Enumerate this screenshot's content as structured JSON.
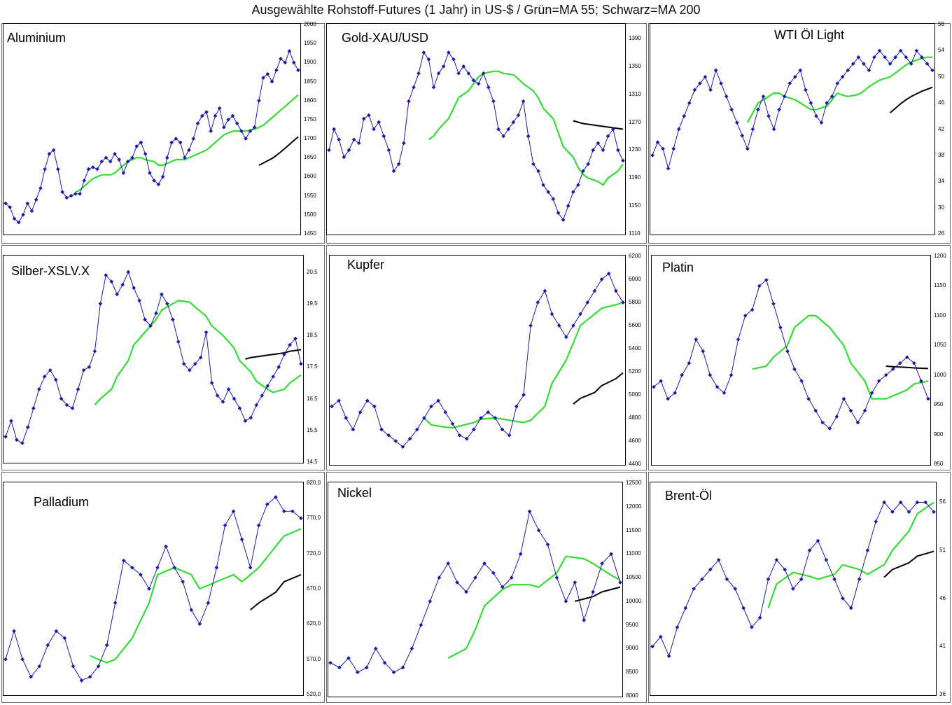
{
  "header": {
    "title": "Ausgewählte Rohstoff-Futures (1 Jahr) in US-$ / Grün=MA 55; Schwarz=MA 200"
  },
  "colors": {
    "price": "#1a1aa8",
    "ma55": "#33dd33",
    "ma200": "#000000",
    "frame": "#000000"
  },
  "chart_data": [
    {
      "type": "line",
      "title": "Aluminium",
      "ylim": [
        1450,
        2000
      ],
      "yticks": [
        "1450",
        "1500",
        "1550",
        "1600",
        "1650",
        "1700",
        "1750",
        "1800",
        "1850",
        "1900",
        "1950",
        "2000"
      ],
      "price": [
        1530,
        1520,
        1490,
        1480,
        1500,
        1530,
        1510,
        1540,
        1570,
        1620,
        1660,
        1670,
        1620,
        1560,
        1545,
        1550,
        1555,
        1555,
        1590,
        1620,
        1625,
        1620,
        1640,
        1650,
        1640,
        1660,
        1645,
        1610,
        1640,
        1650,
        1680,
        1690,
        1660,
        1610,
        1590,
        1580,
        1600,
        1650,
        1690,
        1700,
        1690,
        1650,
        1670,
        1700,
        1740,
        1760,
        1770,
        1720,
        1760,
        1780,
        1730,
        1750,
        1760,
        1740,
        1720,
        1700,
        1720,
        1730,
        1800,
        1860,
        1870,
        1850,
        1880,
        1910,
        1900,
        1930,
        1900,
        1880
      ],
      "ma55": [
        null,
        null,
        null,
        null,
        null,
        null,
        null,
        null,
        null,
        null,
        null,
        null,
        null,
        null,
        null,
        1560,
        1565,
        1575,
        1585,
        1595,
        1600,
        1605,
        1605,
        1605,
        1610,
        1620,
        1630,
        1640,
        1645,
        1650,
        1650,
        1645,
        1640,
        1630,
        1630,
        1635,
        1640,
        1645,
        1645,
        1645,
        1650,
        1655,
        1660,
        1665,
        1670,
        1680,
        1690,
        1700,
        1710,
        1715,
        1720,
        1720,
        1720,
        1720,
        1725,
        1730,
        1735,
        1745,
        1755,
        1765,
        1775,
        1785,
        1795,
        1805,
        1815
      ],
      "ma200": [
        null,
        null,
        null,
        null,
        null,
        null,
        null,
        null,
        null,
        null,
        null,
        null,
        null,
        null,
        null,
        null,
        null,
        null,
        null,
        null,
        null,
        null,
        null,
        null,
        null,
        null,
        null,
        null,
        null,
        null,
        null,
        null,
        null,
        null,
        null,
        null,
        null,
        null,
        null,
        null,
        null,
        null,
        null,
        null,
        null,
        null,
        null,
        null,
        null,
        null,
        null,
        null,
        null,
        null,
        null,
        1630,
        1636,
        1642,
        1648,
        1656,
        1665,
        1675,
        1685,
        1695,
        1705
      ]
    },
    {
      "type": "line",
      "title": "Gold-XAU/USD",
      "ylim": [
        1110,
        1410
      ],
      "yticks": [
        "1110",
        "1150",
        "1190",
        "1230",
        "1270",
        "1310",
        "1350",
        "1390"
      ],
      "price": [
        1230,
        1260,
        1245,
        1220,
        1230,
        1245,
        1240,
        1275,
        1280,
        1260,
        1270,
        1250,
        1230,
        1200,
        1210,
        1240,
        1300,
        1320,
        1340,
        1370,
        1360,
        1320,
        1340,
        1350,
        1370,
        1360,
        1340,
        1350,
        1340,
        1330,
        1325,
        1340,
        1320,
        1300,
        1260,
        1250,
        1260,
        1270,
        1280,
        1300,
        1250,
        1210,
        1200,
        1180,
        1170,
        1160,
        1140,
        1130,
        1150,
        1170,
        1180,
        1200,
        1210,
        1230,
        1240,
        1230,
        1250,
        1260,
        1230,
        1215
      ],
      "ma55": [
        null,
        null,
        null,
        null,
        null,
        null,
        null,
        null,
        null,
        null,
        null,
        null,
        null,
        null,
        null,
        1245,
        1250,
        1260,
        1275,
        1290,
        1305,
        1315,
        1325,
        1335,
        1340,
        1343,
        1343,
        1340,
        1338,
        1332,
        1325,
        1315,
        1305,
        1290,
        1275,
        1255,
        1235,
        1220,
        1205,
        1195,
        1190,
        1185,
        1180,
        1190,
        1200,
        1210
      ],
      "ma200": [
        null,
        null,
        null,
        null,
        null,
        null,
        null,
        null,
        null,
        null,
        null,
        null,
        null,
        null,
        null,
        null,
        null,
        null,
        null,
        null,
        null,
        null,
        null,
        null,
        null,
        null,
        null,
        null,
        null,
        null,
        null,
        null,
        null,
        null,
        null,
        null,
        null,
        null,
        null,
        null,
        null,
        null,
        null,
        null,
        null,
        null,
        null,
        null,
        null,
        1272,
        1270,
        1268,
        1267,
        1266,
        1265,
        1264,
        1263,
        1262,
        1261,
        1260
      ]
    },
    {
      "type": "line",
      "title": "WTI Öl Light",
      "ylim": [
        26,
        58
      ],
      "yticks": [
        "26",
        "30",
        "34",
        "38",
        "42",
        "46",
        "50",
        "54",
        "58"
      ],
      "price": [
        38,
        40,
        39,
        36,
        39,
        42,
        44,
        46,
        48,
        49,
        50,
        48,
        51,
        49,
        47,
        45,
        43,
        41,
        39,
        42,
        45,
        47,
        44,
        42,
        45,
        47,
        49,
        50,
        51,
        48,
        46,
        44,
        43,
        46,
        47,
        49,
        50,
        51,
        52,
        53,
        52,
        51,
        53,
        54,
        53,
        52,
        53,
        54,
        53,
        52,
        54,
        53,
        52,
        51
      ],
      "ma55": [
        null,
        null,
        null,
        null,
        null,
        null,
        null,
        null,
        null,
        null,
        null,
        null,
        null,
        null,
        null,
        43,
        44.5,
        46,
        47,
        47.5,
        47.5,
        47,
        46.5,
        46,
        45.5,
        45,
        45,
        45.5,
        46.5,
        47.5,
        47.2,
        47,
        47.3,
        47.8,
        48.5,
        49,
        49.5,
        50,
        50.6,
        51.2,
        51.8,
        52.3,
        52.8,
        53,
        53
      ],
      "ma200": [
        null,
        null,
        null,
        null,
        null,
        null,
        null,
        null,
        null,
        null,
        null,
        null,
        null,
        null,
        null,
        null,
        null,
        null,
        null,
        null,
        null,
        null,
        null,
        null,
        null,
        null,
        null,
        null,
        null,
        null,
        null,
        null,
        null,
        null,
        null,
        null,
        null,
        null,
        null,
        null,
        null,
        null,
        null,
        null,
        null,
        44.5,
        45.2,
        45.9,
        46.5,
        47,
        47.4,
        47.8,
        48.1,
        48.4
      ]
    },
    {
      "type": "line",
      "title": "Silber-XSLV.X",
      "ylim": [
        14.5,
        21
      ],
      "yticks": [
        "14,5",
        "15,5",
        "16,5",
        "17,5",
        "18,5",
        "19,5",
        "20,5"
      ],
      "price": [
        15.3,
        15.8,
        15.2,
        15.1,
        15.6,
        16.2,
        16.8,
        17.2,
        17.4,
        17.1,
        16.5,
        16.3,
        16.2,
        16.8,
        17.4,
        17.5,
        18.0,
        19.5,
        20.4,
        20.2,
        19.8,
        20.1,
        20.5,
        20.0,
        19.6,
        19.0,
        18.8,
        19.2,
        19.8,
        19.5,
        19.0,
        18.3,
        17.6,
        17.4,
        17.6,
        17.8,
        18.6,
        17.0,
        16.6,
        16.4,
        16.8,
        16.5,
        16.2,
        15.8,
        15.9,
        16.3,
        16.6,
        16.9,
        17.2,
        17.5,
        17.9,
        18.2,
        18.4,
        17.6
      ],
      "ma55": [
        null,
        null,
        null,
        null,
        null,
        null,
        null,
        null,
        null,
        null,
        16.3,
        16.5,
        16.8,
        17.2,
        17.7,
        18.2,
        18.6,
        19.0,
        19.3,
        19.5,
        19.6,
        19.55,
        19.4,
        19.1,
        18.8,
        18.5,
        18.1,
        17.7,
        17.35,
        17.05,
        16.8,
        16.7,
        16.8,
        17.0,
        17.25
      ],
      "ma200": [
        null,
        null,
        null,
        null,
        null,
        null,
        null,
        null,
        null,
        null,
        null,
        null,
        null,
        null,
        null,
        null,
        null,
        null,
        null,
        null,
        null,
        null,
        null,
        null,
        null,
        17.75,
        17.8,
        17.85,
        17.9,
        17.95,
        18.0,
        18.05
      ]
    },
    {
      "type": "line",
      "title": "Kupfer",
      "ylim": [
        4400,
        6200
      ],
      "yticks": [
        "4400",
        "4600",
        "4800",
        "5000",
        "5200",
        "5400",
        "5600",
        "5800",
        "6000",
        "6200"
      ],
      "price": [
        4900,
        4950,
        4800,
        4700,
        4850,
        4950,
        4900,
        4700,
        4650,
        4600,
        4550,
        4620,
        4700,
        4800,
        4900,
        4950,
        4850,
        4750,
        4650,
        4620,
        4700,
        4800,
        4850,
        4800,
        4700,
        4650,
        4900,
        5000,
        5600,
        5800,
        5900,
        5700,
        5600,
        5500,
        5600,
        5700,
        5800,
        5900,
        6000,
        6050,
        5900,
        5800
      ],
      "ma55": [
        null,
        null,
        null,
        null,
        null,
        null,
        null,
        null,
        null,
        4800,
        4740,
        4720,
        4715,
        4730,
        4760,
        4790,
        4800,
        4790,
        4780,
        4760,
        4780,
        4900,
        5100,
        5300,
        5450,
        5600,
        5700,
        5750,
        5780,
        5800
      ],
      "ma200": [
        null,
        null,
        null,
        null,
        null,
        null,
        null,
        null,
        null,
        null,
        null,
        null,
        null,
        null,
        null,
        null,
        null,
        null,
        null,
        null,
        null,
        null,
        null,
        4920,
        4970,
        5020,
        5080,
        5140,
        5190
      ]
    },
    {
      "type": "line",
      "title": "Platin",
      "ylim": [
        850,
        1200
      ],
      "yticks": [
        "850",
        "900",
        "950",
        "1000",
        "1050",
        "1100",
        "1150",
        "1200"
      ],
      "price": [
        980,
        990,
        960,
        970,
        1000,
        1020,
        1060,
        1040,
        1000,
        980,
        970,
        1000,
        1060,
        1100,
        1110,
        1150,
        1160,
        1120,
        1080,
        1040,
        1010,
        990,
        960,
        940,
        920,
        910,
        930,
        960,
        940,
        920,
        940,
        970,
        990,
        1000,
        1010,
        1020,
        1030,
        1020,
        990,
        960
      ],
      "ma55": [
        null,
        null,
        null,
        null,
        null,
        null,
        null,
        null,
        null,
        1010,
        1015,
        1030,
        1050,
        1080,
        1100,
        1100,
        1080,
        1050,
        1020,
        990,
        960,
        960,
        965,
        975,
        985,
        990
      ],
      "ma200": [
        null,
        null,
        null,
        null,
        null,
        null,
        null,
        null,
        null,
        null,
        null,
        null,
        null,
        null,
        null,
        null,
        null,
        null,
        null,
        null,
        null,
        1015,
        1014,
        1013,
        1012,
        1011
      ]
    },
    {
      "type": "line",
      "title": "Palladium",
      "ylim": [
        520,
        820
      ],
      "yticks": [
        "520,0",
        "570,0",
        "620,0",
        "670,0",
        "720,0",
        "770,0",
        "820,0"
      ],
      "price": [
        570,
        610,
        570,
        545,
        560,
        590,
        610,
        600,
        560,
        540,
        545,
        560,
        590,
        650,
        710,
        700,
        690,
        670,
        700,
        730,
        700,
        680,
        640,
        620,
        650,
        700,
        760,
        780,
        740,
        700,
        760,
        790,
        800,
        780,
        780,
        770
      ],
      "ma55": [
        null,
        null,
        null,
        null,
        null,
        null,
        575,
        565,
        570,
        600,
        650,
        690,
        700,
        690,
        670,
        680,
        690,
        680,
        700,
        730,
        745,
        755
      ],
      "ma200": [
        null,
        null,
        null,
        null,
        null,
        null,
        null,
        null,
        null,
        null,
        null,
        null,
        null,
        null,
        null,
        null,
        null,
        null,
        640,
        650,
        665,
        680,
        690
      ]
    },
    {
      "type": "line",
      "title": "Nickel",
      "ylim": [
        8000,
        12500
      ],
      "yticks": [
        "8000",
        "8500",
        "9000",
        "9500",
        "10000",
        "10500",
        "11000",
        "11500",
        "12000",
        "12500"
      ],
      "price": [
        8700,
        8600,
        8800,
        8500,
        8600,
        9000,
        8700,
        8500,
        8600,
        9000,
        9500,
        10000,
        10500,
        10800,
        10400,
        10200,
        10500,
        10800,
        10600,
        10300,
        10500,
        11000,
        11900,
        11500,
        11200,
        10500,
        10000,
        10400,
        9600,
        10200,
        10800,
        11000,
        10400
      ],
      "ma55": [
        null,
        null,
        null,
        null,
        null,
        null,
        null,
        null,
        null,
        8800,
        9000,
        9400,
        9900,
        10250,
        10350,
        10350,
        10300,
        10600,
        10950,
        10900,
        10800,
        10550,
        10450
      ],
      "ma200": [
        null,
        null,
        null,
        null,
        null,
        null,
        null,
        null,
        null,
        null,
        null,
        null,
        null,
        null,
        null,
        null,
        null,
        null,
        10000,
        10100,
        10200,
        10300
      ]
    },
    {
      "type": "line",
      "title": "Brent-Öl",
      "ylim": [
        36,
        58
      ],
      "yticks": [
        "36",
        "41",
        "46",
        "51",
        "56"
      ],
      "price": [
        41,
        42,
        40,
        43,
        45,
        47,
        48,
        49,
        50,
        48,
        47,
        45,
        43,
        44,
        48,
        50,
        49,
        47,
        48,
        51,
        52,
        50,
        48,
        46,
        45,
        48,
        51,
        54,
        56,
        55,
        56,
        55,
        56,
        56,
        55
      ],
      "ma55": [
        null,
        null,
        null,
        null,
        null,
        null,
        null,
        null,
        null,
        45,
        47.5,
        48.7,
        48.3,
        48,
        48.5,
        49.5,
        49,
        48.5,
        49.5,
        51,
        53,
        54.8,
        56
      ],
      "ma200": [
        null,
        null,
        null,
        null,
        null,
        null,
        null,
        null,
        null,
        null,
        null,
        null,
        null,
        null,
        null,
        null,
        null,
        null,
        48.2,
        49,
        49.7,
        50.4,
        50.9
      ]
    }
  ]
}
